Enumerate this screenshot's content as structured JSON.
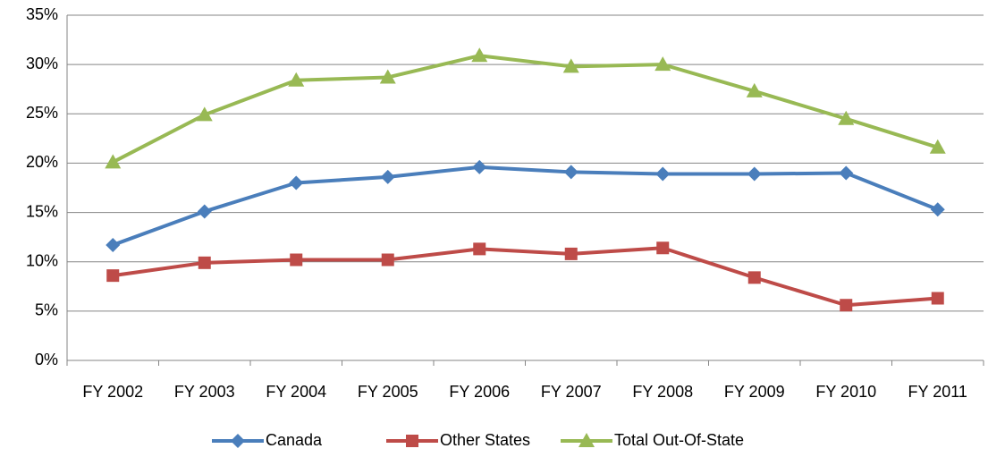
{
  "chart_data": {
    "type": "line",
    "categories": [
      "FY 2002",
      "FY 2003",
      "FY 2004",
      "FY 2005",
      "FY 2006",
      "FY 2007",
      "FY 2008",
      "FY 2009",
      "FY 2010",
      "FY 2011"
    ],
    "series": [
      {
        "name": "Canada",
        "color": "#4a7ebb",
        "marker": "diamond",
        "values": [
          11.7,
          15.1,
          18.0,
          18.6,
          19.6,
          19.1,
          18.9,
          18.9,
          19.0,
          15.3
        ]
      },
      {
        "name": "Other States",
        "color": "#be4b48",
        "marker": "square",
        "values": [
          8.6,
          9.9,
          10.2,
          10.2,
          11.3,
          10.8,
          11.4,
          8.4,
          5.6,
          6.3
        ]
      },
      {
        "name": "Total Out-Of-State",
        "color": "#98b954",
        "marker": "triangle",
        "values": [
          20.1,
          24.9,
          28.4,
          28.7,
          30.9,
          29.8,
          30.0,
          27.3,
          24.5,
          21.6
        ]
      }
    ],
    "ylim": [
      0,
      35
    ],
    "yticks": [
      {
        "value": 0,
        "label": "0%"
      },
      {
        "value": 5,
        "label": "5%"
      },
      {
        "value": 10,
        "label": "10%"
      },
      {
        "value": 15,
        "label": "15%"
      },
      {
        "value": 20,
        "label": "20%"
      },
      {
        "value": 25,
        "label": "25%"
      },
      {
        "value": 30,
        "label": "30%"
      },
      {
        "value": 35,
        "label": "35%"
      }
    ],
    "grid": true,
    "legend": "bottom"
  }
}
